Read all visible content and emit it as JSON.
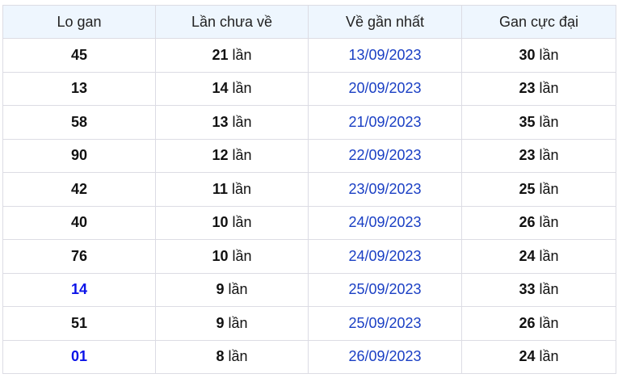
{
  "headers": [
    "Lo gan",
    "Lần chưa về",
    "Về gần nhất",
    "Gan cực đại"
  ],
  "unit": "lần",
  "colors": {
    "header_bg": "#eef6fe",
    "highlight_number": "#0b13e8",
    "date": "#1a3fc4",
    "border": "#dcdce4"
  },
  "rows": [
    {
      "number": "45",
      "highlight": false,
      "missed": "21",
      "last_seen": "13/09/2023",
      "max_gap": "30"
    },
    {
      "number": "13",
      "highlight": false,
      "missed": "14",
      "last_seen": "20/09/2023",
      "max_gap": "23"
    },
    {
      "number": "58",
      "highlight": false,
      "missed": "13",
      "last_seen": "21/09/2023",
      "max_gap": "35"
    },
    {
      "number": "90",
      "highlight": false,
      "missed": "12",
      "last_seen": "22/09/2023",
      "max_gap": "23"
    },
    {
      "number": "42",
      "highlight": false,
      "missed": "11",
      "last_seen": "23/09/2023",
      "max_gap": "25"
    },
    {
      "number": "40",
      "highlight": false,
      "missed": "10",
      "last_seen": "24/09/2023",
      "max_gap": "26"
    },
    {
      "number": "76",
      "highlight": false,
      "missed": "10",
      "last_seen": "24/09/2023",
      "max_gap": "24"
    },
    {
      "number": "14",
      "highlight": true,
      "missed": "9",
      "last_seen": "25/09/2023",
      "max_gap": "33"
    },
    {
      "number": "51",
      "highlight": false,
      "missed": "9",
      "last_seen": "25/09/2023",
      "max_gap": "26"
    },
    {
      "number": "01",
      "highlight": true,
      "missed": "8",
      "last_seen": "26/09/2023",
      "max_gap": "24"
    }
  ]
}
